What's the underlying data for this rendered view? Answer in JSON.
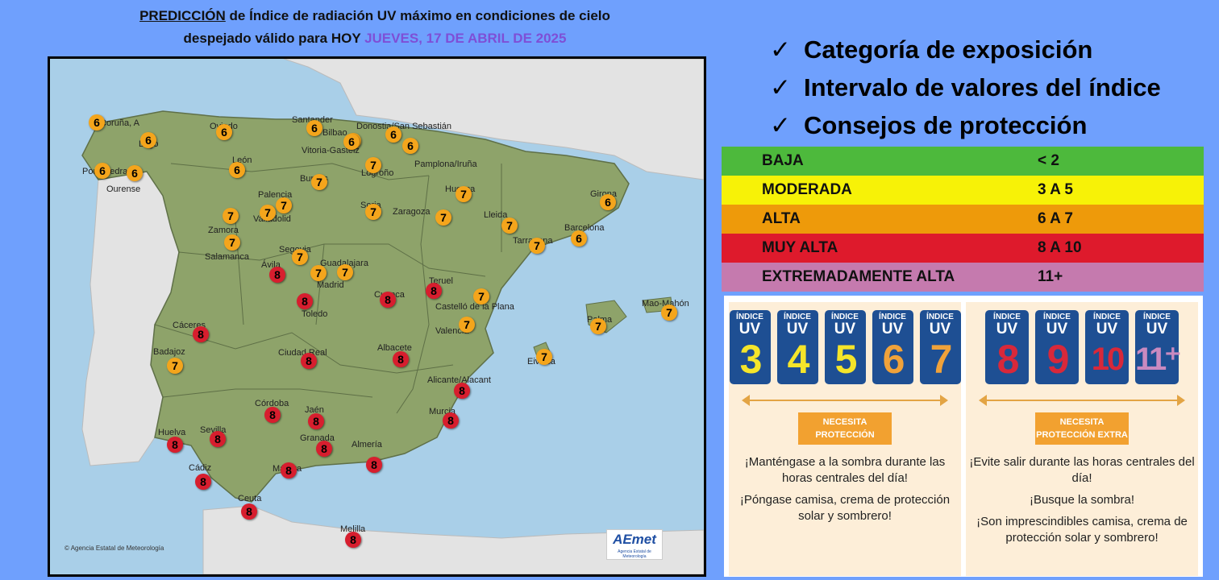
{
  "header": {
    "line1_prefix": "PREDICCIÓN",
    "line1_rest": " de Índice de radiación UV máximo en condiciones de cielo",
    "line2_prefix": "despejado válido para HOY ",
    "line2_date": "JUEVES, 17 DE ABRIL DE 2025"
  },
  "checklist": [
    "Categoría de exposición",
    "Intervalo de valores del índice",
    "Consejos de protección"
  ],
  "check_glyph": "✓",
  "categories": [
    {
      "name": "BAJA",
      "range": "< 2",
      "color": "#4db93c"
    },
    {
      "name": "MODERADA",
      "range": "3 A 5",
      "color": "#f7f207"
    },
    {
      "name": "ALTA",
      "range": "6 A 7",
      "color": "#ee9a0a"
    },
    {
      "name": "MUY ALTA",
      "range": "8 A 10",
      "color": "#de1a2c"
    },
    {
      "name": "EXTREMADAMENTE ALTA",
      "range": "11+",
      "color": "#c57aae"
    }
  ],
  "map": {
    "credit": "Agencia Estatal de Meteorología",
    "logo_text": "AEmet",
    "logo_subtext": "Agencia Estatal de Meteorología",
    "cities": [
      {
        "name": "Coruña, A",
        "uv": 6
      },
      {
        "name": "Lugo",
        "uv": 6
      },
      {
        "name": "Pontevedra",
        "uv": 6
      },
      {
        "name": "Ourense",
        "uv": 6
      },
      {
        "name": "Oviedo",
        "uv": 6
      },
      {
        "name": "Santander",
        "uv": 6
      },
      {
        "name": "Bilbao",
        "uv": 6
      },
      {
        "name": "Donostia/San Sebastián",
        "uv": 6
      },
      {
        "name": "Vitoria-Gasteiz",
        "uv": 6
      },
      {
        "name": "Pamplona/Iruña",
        "uv": 6
      },
      {
        "name": "Logroño",
        "uv": 7
      },
      {
        "name": "León",
        "uv": 6
      },
      {
        "name": "Burgos",
        "uv": 7
      },
      {
        "name": "Palencia",
        "uv": 7
      },
      {
        "name": "Valladolid",
        "uv": 7
      },
      {
        "name": "Zamora",
        "uv": 7
      },
      {
        "name": "Soria",
        "uv": 7
      },
      {
        "name": "Huesca",
        "uv": 7
      },
      {
        "name": "Zaragoza",
        "uv": 7
      },
      {
        "name": "Lleida",
        "uv": 7
      },
      {
        "name": "Girona",
        "uv": 6
      },
      {
        "name": "Barcelona",
        "uv": 6
      },
      {
        "name": "Tarragona",
        "uv": 7
      },
      {
        "name": "Salamanca",
        "uv": 7
      },
      {
        "name": "Segovia",
        "uv": 7
      },
      {
        "name": "Ávila",
        "uv": 8
      },
      {
        "name": "Guadalajara",
        "uv": 7
      },
      {
        "name": "Madrid",
        "uv": 7
      },
      {
        "name": "Teruel",
        "uv": 8
      },
      {
        "name": "Cuenca",
        "uv": 8
      },
      {
        "name": "Toledo",
        "uv": 8
      },
      {
        "name": "Castelló de la Plana",
        "uv": 7
      },
      {
        "name": "Valencia",
        "uv": 7
      },
      {
        "name": "Palma",
        "uv": 7
      },
      {
        "name": "Mao-Mahón",
        "uv": 7
      },
      {
        "name": "Eivissa",
        "uv": 7
      },
      {
        "name": "Cáceres",
        "uv": 8
      },
      {
        "name": "Badajoz",
        "uv": 7
      },
      {
        "name": "Ciudad Real",
        "uv": 8
      },
      {
        "name": "Albacete",
        "uv": 8
      },
      {
        "name": "Alicante/Alacant",
        "uv": 8
      },
      {
        "name": "Murcia",
        "uv": 8
      },
      {
        "name": "Córdoba",
        "uv": 8
      },
      {
        "name": "Jaén",
        "uv": 8
      },
      {
        "name": "Huelva",
        "uv": 8
      },
      {
        "name": "Sevilla",
        "uv": 8
      },
      {
        "name": "Granada",
        "uv": 8
      },
      {
        "name": "Almería",
        "uv": 8
      },
      {
        "name": "Málaga",
        "uv": 8
      },
      {
        "name": "Cádiz",
        "uv": 8
      },
      {
        "name": "Ceuta",
        "uv": 8
      },
      {
        "name": "Melilla",
        "uv": 8
      }
    ]
  },
  "advice": {
    "tile_label_1": "ÍNDICE",
    "tile_label_2": "UV",
    "left": {
      "tiles": [
        {
          "num": "3",
          "color": "#f5e52a"
        },
        {
          "num": "4",
          "color": "#f5e52a"
        },
        {
          "num": "5",
          "color": "#f5e52a"
        },
        {
          "num": "6",
          "color": "#f0a23a"
        },
        {
          "num": "7",
          "color": "#f0a23a"
        }
      ],
      "badge_line1": "NECESITA",
      "badge_line2": "PROTECCIÓN",
      "text1": "¡Manténgase a la sombra durante las horas centrales del día!",
      "text2": "¡Póngase camisa, crema de protección solar y sombrero!"
    },
    "right": {
      "tiles": [
        {
          "num": "8",
          "color": "#d8283a"
        },
        {
          "num": "9",
          "color": "#d8283a"
        },
        {
          "num": "10",
          "color": "#d8283a"
        },
        {
          "num": "11⁺",
          "color": "#c98ac0"
        }
      ],
      "badge_line1": "NECESITA",
      "badge_line2": "PROTECCIÓN EXTRA",
      "text1": "¡Evite salir durante las horas centrales del día!",
      "text2": "¡Busque la sombra!",
      "text3": "¡Son imprescindibles camisa, crema de protección solar y sombrero!"
    }
  }
}
